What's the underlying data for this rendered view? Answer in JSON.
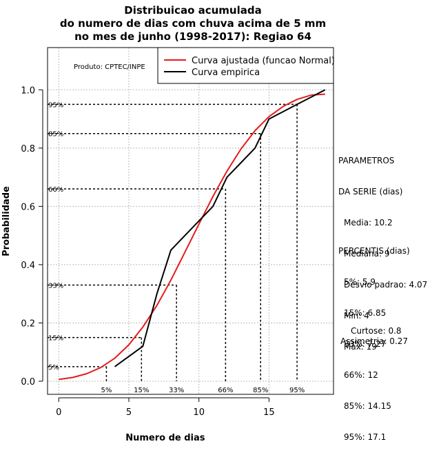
{
  "chart_data": {
    "type": "line",
    "title": [
      "Distribuicao acumulada",
      "do numero de dias com chuva acima de 5 mm",
      "no mes de junho (1998-2017): Regiao 64"
    ],
    "xlabel": "Numero de dias",
    "ylabel": "Probabilidade",
    "xlim": [
      -0.8,
      19.6
    ],
    "ylim": [
      -0.045,
      1.145
    ],
    "x_ticks": [
      0,
      5,
      10,
      15
    ],
    "y_ticks": [
      0.0,
      0.2,
      0.4,
      0.6,
      0.8,
      1.0
    ],
    "y_tick_labels": [
      "0.0",
      "0.2",
      "0.4",
      "0.6",
      "0.8",
      "1.0"
    ],
    "grid": true,
    "legend_position": "top-right",
    "product_label": "Produto: CPTEC/INPE",
    "series": [
      {
        "name": "Curva ajustada (funcao Normal)",
        "color": "#e41a1c",
        "x": [
          0,
          1,
          2,
          3,
          4,
          5,
          6,
          7,
          8,
          9,
          10,
          11,
          12,
          13,
          14,
          15,
          16,
          17,
          18,
          19
        ],
        "y": [
          0.006,
          0.013,
          0.026,
          0.047,
          0.079,
          0.125,
          0.186,
          0.26,
          0.347,
          0.443,
          0.539,
          0.634,
          0.721,
          0.797,
          0.86,
          0.908,
          0.943,
          0.967,
          0.982,
          0.985
        ]
      },
      {
        "name": "Curva empirica",
        "color": "#000000",
        "x": [
          4,
          6,
          7,
          8,
          9,
          11,
          12,
          13,
          14,
          15,
          16,
          17,
          18,
          19
        ],
        "y": [
          0.05,
          0.12,
          0.3,
          0.45,
          0.5,
          0.6,
          0.7,
          0.75,
          0.8,
          0.9,
          0.925,
          0.95,
          0.975,
          1.0
        ]
      }
    ],
    "percentile_markers": [
      {
        "label": "5%",
        "x": 3.4,
        "y": 0.05
      },
      {
        "label": "15%",
        "x": 5.9,
        "y": 0.15
      },
      {
        "label": "33%",
        "x": 8.4,
        "y": 0.33
      },
      {
        "label": "66%",
        "x": 11.9,
        "y": 0.66
      },
      {
        "label": "85%",
        "x": 14.4,
        "y": 0.85
      },
      {
        "label": "95%",
        "x": 17.0,
        "y": 0.95
      }
    ]
  },
  "side_panel": {
    "parametros_title": [
      "PARAMETROS",
      "DA SERIE (dias)"
    ],
    "parametros": [
      "Media: 10.2",
      "Mediana: 9",
      "Desvio padrao: 4.07",
      "Min: 4",
      "Max: 19"
    ],
    "percentis_title": "PERCENTIS (dias)",
    "percentis": [
      "5%: 5.9",
      "15%: 6.85",
      "33%: 7.27",
      "66%: 12",
      "85%: 14.15",
      "95%: 17.1"
    ],
    "curtose": "Curtose: 0.8",
    "assimetria": "Assimetria: 0.27"
  }
}
